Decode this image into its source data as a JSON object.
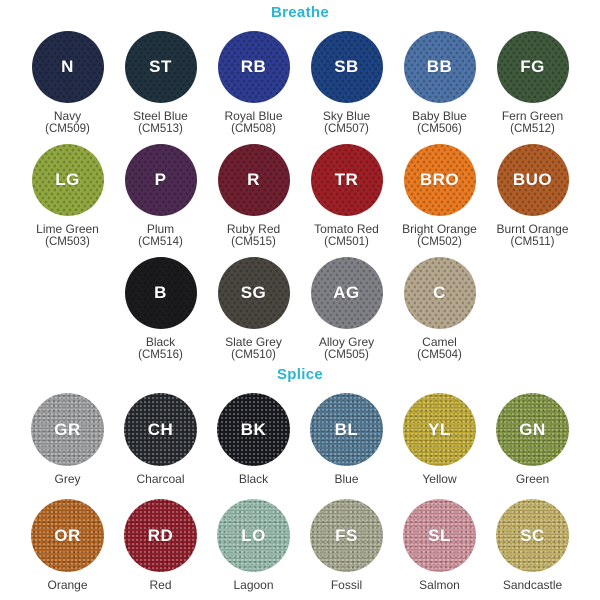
{
  "title_color": "#2bb5d1",
  "label_color": "#3d3d3d",
  "sections": [
    {
      "title": "Breathe",
      "swatch_style": "mesh",
      "rows": [
        [
          {
            "abbr": "N",
            "name": "Navy",
            "code": "(CM509)",
            "color": "#232c49"
          },
          {
            "abbr": "ST",
            "name": "Steel Blue",
            "code": "(CM513)",
            "color": "#20333f"
          },
          {
            "abbr": "RB",
            "name": "Royal Blue",
            "code": "(CM508)",
            "color": "#2e3d92"
          },
          {
            "abbr": "SB",
            "name": "Sky Blue",
            "code": "(CM507)",
            "color": "#1d4382"
          },
          {
            "abbr": "BB",
            "name": "Baby Blue",
            "code": "(CM506)",
            "color": "#4d73a7"
          },
          {
            "abbr": "FG",
            "name": "Fern Green",
            "code": "(CM512)",
            "color": "#3f5a3c"
          }
        ],
        [
          {
            "abbr": "LG",
            "name": "Lime Green",
            "code": "(CM503)",
            "color": "#90a73f"
          },
          {
            "abbr": "P",
            "name": "Plum",
            "code": "(CM514)",
            "color": "#4e2b53"
          },
          {
            "abbr": "R",
            "name": "Ruby Red",
            "code": "(CM515)",
            "color": "#6f2030"
          },
          {
            "abbr": "TR",
            "name": "Tomato Red",
            "code": "(CM501)",
            "color": "#9e2026"
          },
          {
            "abbr": "BRO",
            "name": "Bright Orange",
            "code": "(CM502)",
            "color": "#e97a22"
          },
          {
            "abbr": "BUO",
            "name": "Burnt Orange",
            "code": "(CM511)",
            "color": "#b05d28"
          }
        ],
        [
          {
            "abbr": "B",
            "name": "Black",
            "code": "(CM516)",
            "color": "#1b1b1d"
          },
          {
            "abbr": "SG",
            "name": "Slate Grey",
            "code": "(CM510)",
            "color": "#4a4640"
          },
          {
            "abbr": "AG",
            "name": "Alloy Grey",
            "code": "(CM505)",
            "color": "#7f8186"
          },
          {
            "abbr": "C",
            "name": "Camel",
            "code": "(CM504)",
            "color": "#b4a78d"
          }
        ]
      ]
    },
    {
      "title": "Splice",
      "swatch_style": "weave",
      "rows": [
        [
          {
            "abbr": "GR",
            "name": "Grey",
            "color": "#9a9c9e"
          },
          {
            "abbr": "CH",
            "name": "Charcoal",
            "color": "#25282c"
          },
          {
            "abbr": "BK",
            "name": "Black",
            "color": "#17191e"
          },
          {
            "abbr": "BL",
            "name": "Blue",
            "color": "#507590"
          },
          {
            "abbr": "YL",
            "name": "Yellow",
            "color": "#bda733"
          },
          {
            "abbr": "GN",
            "name": "Green",
            "color": "#7e9240"
          }
        ],
        [
          {
            "abbr": "OR",
            "name": "Orange",
            "color": "#b26420"
          },
          {
            "abbr": "RD",
            "name": "Red",
            "color": "#8e1c29"
          },
          {
            "abbr": "LO",
            "name": "Lagoon",
            "color": "#93b8a8"
          },
          {
            "abbr": "FS",
            "name": "Fossil",
            "color": "#a3a48c"
          },
          {
            "abbr": "SL",
            "name": "Salmon",
            "color": "#cc909a"
          },
          {
            "abbr": "SC",
            "name": "Sandcastle",
            "color": "#c0ae63"
          }
        ]
      ]
    }
  ]
}
